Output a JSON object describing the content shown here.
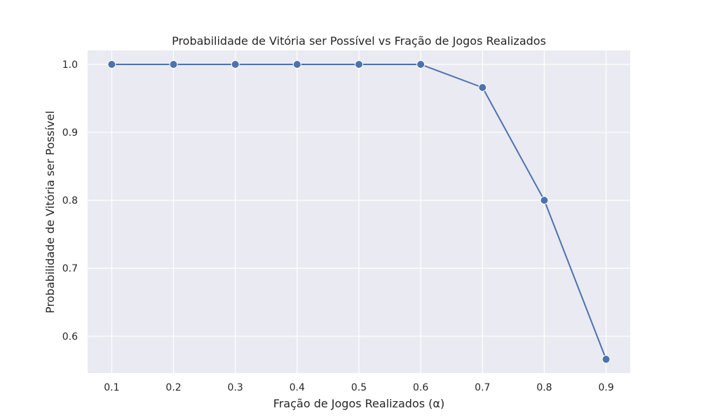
{
  "chart_data": {
    "type": "line",
    "title": "Probabilidade de Vitória ser Possível vs Fração de Jogos Realizados",
    "xlabel": "Fração de Jogos Realizados (α)",
    "ylabel": "Probabilidade de Vitória ser Possível",
    "x": [
      0.1,
      0.2,
      0.3,
      0.4,
      0.5,
      0.6,
      0.7,
      0.8,
      0.9
    ],
    "series": [
      {
        "values": [
          1.0,
          1.0,
          1.0,
          1.0,
          1.0,
          1.0,
          0.966,
          0.8,
          0.566
        ],
        "color": "#4c72b0",
        "marker": "circle"
      }
    ],
    "xticks": [
      "0.1",
      "0.2",
      "0.3",
      "0.4",
      "0.5",
      "0.6",
      "0.7",
      "0.8",
      "0.9"
    ],
    "yticks": [
      "0.6",
      "0.7",
      "0.8",
      "0.9",
      "1.0"
    ],
    "xlim": [
      0.061,
      0.939
    ],
    "ylim": [
      0.5457,
      1.0206
    ],
    "grid": true,
    "background": "#eaeaf2"
  }
}
